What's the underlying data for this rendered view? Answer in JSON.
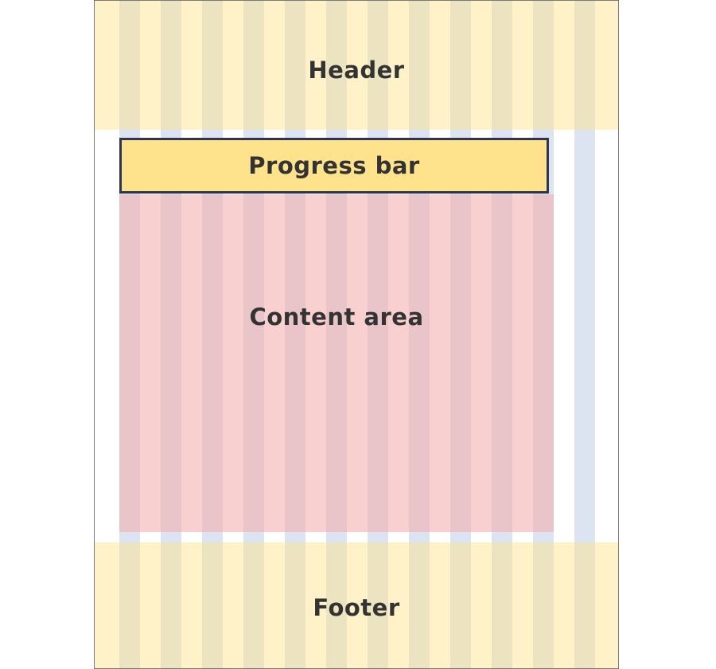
{
  "regions": {
    "header": {
      "label": "Header"
    },
    "progress_bar": {
      "label": "Progress bar"
    },
    "content_area": {
      "label": "Content area"
    },
    "footer": {
      "label": "Footer"
    }
  },
  "colors": {
    "grid_column": "#dbe4f0",
    "header_footer_band": "#ffe28c",
    "progress_bar_fill": "#ffe28c",
    "progress_bar_border": "#2d3550",
    "content_area": "#f4aaaa",
    "text": "#333333",
    "frame_border": "#7a7a7a"
  }
}
